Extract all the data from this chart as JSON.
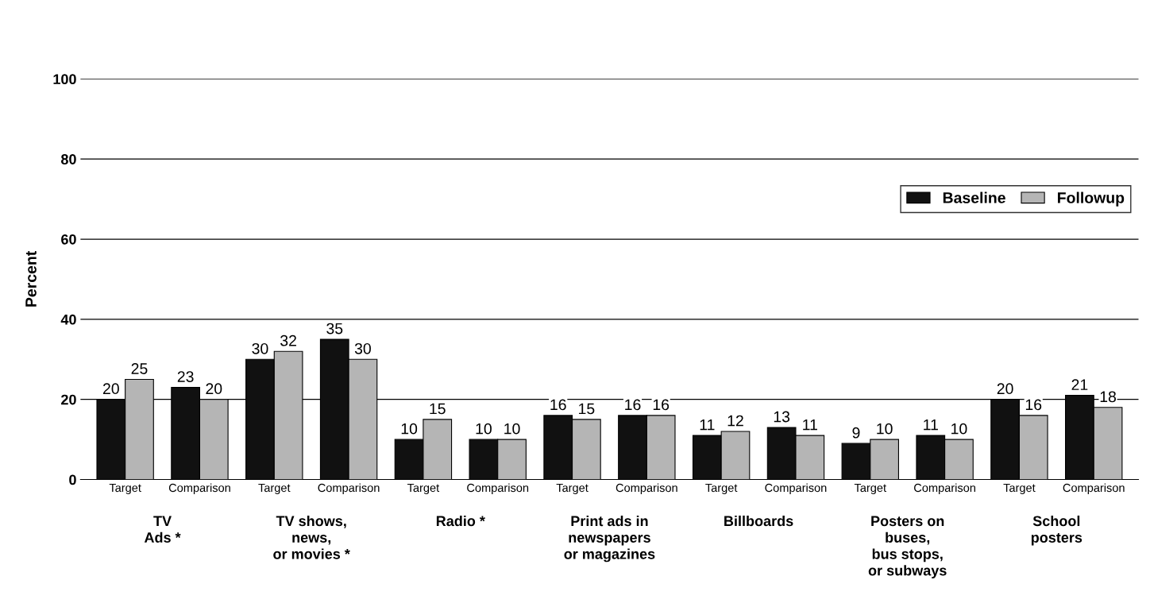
{
  "chart_data": {
    "type": "bar",
    "categories": [
      "Target",
      "Comparison",
      "Target",
      "Comparison",
      "Target",
      "Comparison",
      "Target",
      "Comparison",
      "Target",
      "Comparison",
      "Target",
      "Comparison",
      "Target",
      "Comparison"
    ],
    "series": [
      {
        "name": "Baseline",
        "color": "#111111",
        "values": [
          20,
          23,
          30,
          35,
          10,
          10,
          16,
          16,
          11,
          13,
          9,
          11,
          20,
          21
        ]
      },
      {
        "name": "Followup",
        "color": "#b5b5b5",
        "values": [
          25,
          20,
          32,
          30,
          15,
          10,
          15,
          16,
          12,
          11,
          10,
          10,
          16,
          18
        ]
      }
    ],
    "ylabel": "Percent",
    "ylim": [
      0,
      100
    ],
    "yticks": [
      0,
      20,
      40,
      60,
      80,
      100
    ],
    "grid": "y",
    "legend": "right",
    "data_labels": true,
    "annotations": [
      "TV\nAds *",
      "TV shows,\nnews,\nor movies *",
      "Radio *",
      "Print ads in\nnewspapers\nor magazines",
      "Billboards",
      "Posters on\nbuses,\nbus stops,\nor subways",
      "School\nposters"
    ]
  }
}
